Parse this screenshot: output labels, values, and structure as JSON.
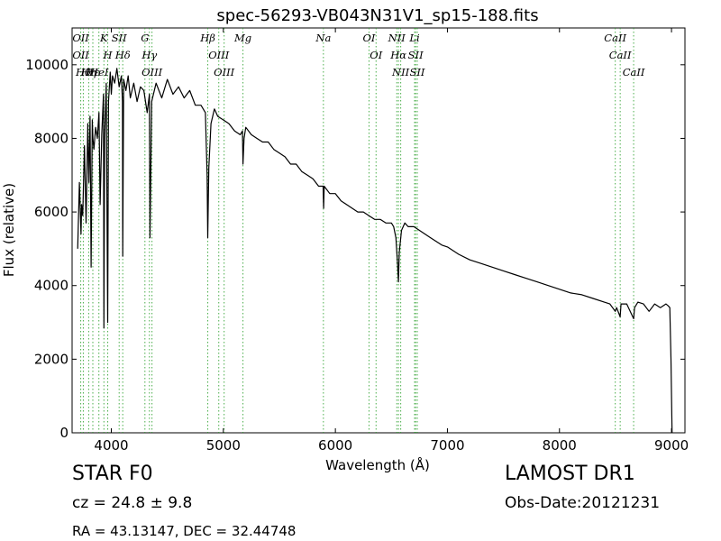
{
  "chart_data": {
    "type": "line",
    "title": "spec-56293-VB043N31V1_sp15-188.fits",
    "xlabel": "Wavelength (Å)",
    "ylabel": "Flux (relative)",
    "xlim": [
      3650,
      9120
    ],
    "ylim": [
      0,
      11000
    ],
    "xticks": [
      4000,
      5000,
      6000,
      7000,
      8000,
      9000
    ],
    "yticks": [
      0,
      2000,
      4000,
      6000,
      8000,
      10000
    ],
    "grid": false,
    "series": [
      {
        "color": "#000000",
        "x": [
          3700,
          3715,
          3730,
          3735,
          3745,
          3760,
          3775,
          3790,
          3800,
          3810,
          3820,
          3830,
          3836,
          3845,
          3860,
          3875,
          3890,
          3900,
          3915,
          3930,
          3934,
          3940,
          3955,
          3968,
          3975,
          3990,
          4000,
          4010,
          4030,
          4050,
          4070,
          4090,
          4100,
          4102,
          4110,
          4130,
          4150,
          4170,
          4200,
          4230,
          4260,
          4290,
          4320,
          4340,
          4345,
          4360,
          4400,
          4450,
          4500,
          4550,
          4600,
          4650,
          4700,
          4750,
          4800,
          4840,
          4855,
          4861,
          4870,
          4890,
          4920,
          4950,
          5000,
          5050,
          5100,
          5150,
          5170,
          5175,
          5185,
          5200,
          5250,
          5300,
          5350,
          5400,
          5450,
          5500,
          5550,
          5600,
          5650,
          5700,
          5750,
          5800,
          5850,
          5890,
          5895,
          5900,
          5950,
          6000,
          6050,
          6100,
          6150,
          6200,
          6250,
          6300,
          6350,
          6400,
          6450,
          6500,
          6520,
          6540,
          6555,
          6563,
          6570,
          6590,
          6620,
          6650,
          6700,
          6750,
          6800,
          6850,
          6900,
          6950,
          7000,
          7100,
          7200,
          7300,
          7400,
          7500,
          7600,
          7700,
          7800,
          7900,
          8000,
          8100,
          8200,
          8300,
          8400,
          8450,
          8498,
          8510,
          8542,
          8550,
          8600,
          8662,
          8670,
          8700,
          8750,
          8800,
          8850,
          8900,
          8950,
          8970,
          8985,
          8995,
          9005
        ],
        "y": [
          5000,
          6800,
          5400,
          6200,
          5900,
          7800,
          5700,
          8400,
          6800,
          8600,
          4500,
          8500,
          8000,
          7700,
          8300,
          8000,
          8700,
          6200,
          8100,
          9200,
          2850,
          8000,
          9500,
          3000,
          9000,
          9800,
          9200,
          9700,
          9500,
          9900,
          9400,
          9700,
          9000,
          4800,
          9600,
          9300,
          9700,
          9100,
          9500,
          9000,
          9400,
          9300,
          8700,
          9200,
          5300,
          9000,
          9500,
          9100,
          9600,
          9200,
          9400,
          9100,
          9300,
          8900,
          8900,
          8700,
          7000,
          5300,
          7200,
          8400,
          8800,
          8600,
          8500,
          8400,
          8200,
          8100,
          8200,
          7300,
          8000,
          8300,
          8100,
          8000,
          7900,
          7900,
          7700,
          7600,
          7500,
          7300,
          7300,
          7100,
          7000,
          6900,
          6700,
          6700,
          6100,
          6700,
          6500,
          6500,
          6300,
          6200,
          6100,
          6000,
          6000,
          5900,
          5800,
          5800,
          5700,
          5700,
          5600,
          5300,
          4600,
          4100,
          4900,
          5500,
          5700,
          5600,
          5600,
          5500,
          5400,
          5300,
          5200,
          5100,
          5050,
          4850,
          4700,
          4600,
          4500,
          4400,
          4300,
          4200,
          4100,
          4000,
          3900,
          3800,
          3750,
          3650,
          3550,
          3500,
          3300,
          3400,
          3150,
          3500,
          3500,
          3100,
          3400,
          3550,
          3500,
          3300,
          3500,
          3400,
          3500,
          3450,
          3400,
          2000,
          0
        ]
      }
    ],
    "lines": [
      {
        "wl": 3727,
        "labels": [
          "OII",
          "OII"
        ]
      },
      {
        "wl": 3750,
        "labels": [
          "Hθ"
        ]
      },
      {
        "wl": 3798,
        "labels": [
          "Hη"
        ]
      },
      {
        "wl": 3835,
        "labels": [
          "Hε"
        ]
      },
      {
        "wl": 3889,
        "labels": [
          "HeI"
        ]
      },
      {
        "wl": 3934,
        "labels": [
          "K"
        ]
      },
      {
        "wl": 3968,
        "labels": [
          "H"
        ]
      },
      {
        "wl": 4070,
        "labels": [
          "SII"
        ]
      },
      {
        "wl": 4102,
        "labels": [
          "Hδ"
        ]
      },
      {
        "wl": 4300,
        "labels": [
          "G"
        ]
      },
      {
        "wl": 4340,
        "labels": [
          "Hγ"
        ]
      },
      {
        "wl": 4363,
        "labels": [
          "OIII"
        ]
      },
      {
        "wl": 4861,
        "labels": [
          "Hβ"
        ]
      },
      {
        "wl": 4959,
        "labels": [
          "OIII"
        ]
      },
      {
        "wl": 5007,
        "labels": [
          "OIII"
        ]
      },
      {
        "wl": 5175,
        "labels": [
          "Mg"
        ]
      },
      {
        "wl": 5893,
        "labels": [
          "Na"
        ]
      },
      {
        "wl": 6300,
        "labels": [
          "OI"
        ]
      },
      {
        "wl": 6363,
        "labels": [
          "OI"
        ]
      },
      {
        "wl": 6548,
        "labels": [
          "NII"
        ]
      },
      {
        "wl": 6563,
        "labels": [
          "Hα"
        ]
      },
      {
        "wl": 6583,
        "labels": [
          "NII"
        ]
      },
      {
        "wl": 6707,
        "labels": [
          "Li"
        ]
      },
      {
        "wl": 6716,
        "labels": [
          "SII"
        ]
      },
      {
        "wl": 6731,
        "labels": [
          "SII"
        ]
      },
      {
        "wl": 8498,
        "labels": [
          "CaII"
        ]
      },
      {
        "wl": 8542,
        "labels": [
          "CaII"
        ]
      },
      {
        "wl": 8662,
        "labels": [
          "CaII"
        ]
      }
    ],
    "line_color": "#2ca02c"
  },
  "info": {
    "class_text": "STAR   F0",
    "survey_text": "LAMOST DR1",
    "cz_text": "cz = 24.8 ± 9.8",
    "obs_date_text": "Obs-Date:20121231",
    "radec_text": "RA = 43.13147, DEC = 32.44748"
  }
}
